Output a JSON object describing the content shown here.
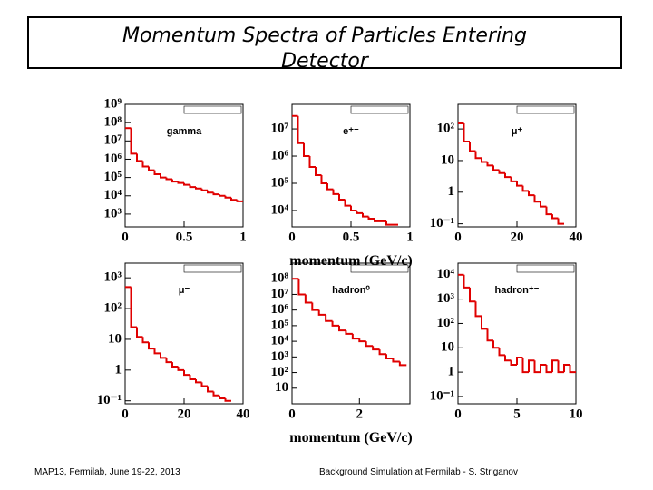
{
  "title": "Momentum Spectra of Particles Entering Detector",
  "footer_left": "MAP13, Fermilab, June 19-22, 2013",
  "footer_right": "Background Simulation at Fermilab - S. Striganov",
  "chart_data": [
    {
      "type": "histogram",
      "annotation": "gamma",
      "color": "#e00000",
      "log_y": true,
      "bins": [
        0,
        0.05,
        0.1,
        0.15,
        0.2,
        0.25,
        0.3,
        0.35,
        0.4,
        0.45,
        0.5,
        0.55,
        0.6,
        0.65,
        0.7,
        0.75,
        0.8,
        0.85,
        0.9,
        0.95,
        1
      ],
      "values": [
        50000000,
        2000000,
        800000,
        400000,
        250000,
        150000,
        100000,
        80000,
        60000,
        50000,
        40000,
        30000,
        25000,
        20000,
        15000,
        12000,
        10000,
        8000,
        6000,
        5000
      ],
      "xlim": [
        0,
        1
      ],
      "xticks": [
        0,
        0.5,
        1
      ],
      "ylim": [
        200,
        1000000000
      ],
      "yticks": [
        {
          "value": 1000,
          "label": "10³"
        },
        {
          "value": 10000,
          "label": "10⁴"
        },
        {
          "value": 100000,
          "label": "10⁵"
        },
        {
          "value": 1000000,
          "label": "10⁶"
        },
        {
          "value": 10000000,
          "label": "10⁷"
        },
        {
          "value": 100000000,
          "label": "10⁸"
        },
        {
          "value": 1000000000,
          "label": "10⁹"
        }
      ]
    },
    {
      "type": "histogram",
      "annotation": "e⁺⁻",
      "color": "#e00000",
      "log_y": true,
      "xlabel": "momentum (GeV/c)",
      "bins": [
        0,
        0.05,
        0.1,
        0.15,
        0.2,
        0.25,
        0.3,
        0.35,
        0.4,
        0.45,
        0.5,
        0.55,
        0.6,
        0.65,
        0.7,
        0.75,
        0.8,
        0.85,
        0.9
      ],
      "values": [
        30000000,
        3000000,
        1000000,
        400000,
        200000,
        100000,
        60000,
        40000,
        25000,
        15000,
        10000,
        8000,
        6000,
        5000,
        4000,
        4000,
        3000,
        3000
      ],
      "xlim": [
        0,
        1
      ],
      "xticks": [
        0,
        0.5,
        1
      ],
      "ylim": [
        2500,
        80000000
      ],
      "yticks": [
        {
          "value": 10000,
          "label": "10⁴"
        },
        {
          "value": 100000,
          "label": "10⁵"
        },
        {
          "value": 1000000,
          "label": "10⁶"
        },
        {
          "value": 10000000,
          "label": "10⁷"
        }
      ]
    },
    {
      "type": "histogram",
      "annotation": "μ⁺",
      "color": "#e00000",
      "log_y": true,
      "bins": [
        0,
        2,
        4,
        6,
        8,
        10,
        12,
        14,
        16,
        18,
        20,
        22,
        24,
        26,
        28,
        30,
        32,
        34,
        36
      ],
      "values": [
        150,
        40,
        20,
        12,
        9,
        7,
        5,
        4,
        3,
        2.2,
        1.6,
        1.1,
        0.8,
        0.5,
        0.35,
        0.2,
        0.15,
        0.1
      ],
      "xlim": [
        0,
        40
      ],
      "xticks": [
        0,
        20,
        40
      ],
      "ylim": [
        0.08,
        600
      ],
      "yticks": [
        {
          "value": 0.1,
          "label": "10⁻¹"
        },
        1,
        10,
        {
          "value": 100,
          "label": "10²"
        }
      ]
    },
    {
      "type": "histogram",
      "annotation": "μ⁻",
      "color": "#e00000",
      "log_y": true,
      "bins": [
        0,
        2,
        4,
        6,
        8,
        10,
        12,
        14,
        16,
        18,
        20,
        22,
        24,
        26,
        28,
        30,
        32,
        34,
        36
      ],
      "values": [
        500,
        25,
        12,
        8,
        5,
        3.5,
        2.5,
        1.8,
        1.3,
        1,
        0.7,
        0.5,
        0.4,
        0.3,
        0.2,
        0.15,
        0.12,
        0.1
      ],
      "xlim": [
        0,
        40
      ],
      "xticks": [
        0,
        20,
        40
      ],
      "ylim": [
        0.08,
        3000
      ],
      "yticks": [
        {
          "value": 0.1,
          "label": "10⁻¹"
        },
        1,
        10,
        {
          "value": 100,
          "label": "10²"
        },
        {
          "value": 1000,
          "label": "10³"
        }
      ]
    },
    {
      "type": "histogram",
      "annotation": "hadron⁰",
      "color": "#e00000",
      "log_y": true,
      "xlabel": "momentum (GeV/c)",
      "bins": [
        0,
        0.2,
        0.4,
        0.6,
        0.8,
        1,
        1.2,
        1.4,
        1.6,
        1.8,
        2,
        2.2,
        2.4,
        2.6,
        2.8,
        3,
        3.2,
        3.4
      ],
      "values": [
        100000000,
        10000000,
        3000000,
        1000000,
        500000,
        200000,
        100000,
        50000,
        30000,
        15000,
        10000,
        5000,
        3000,
        1500,
        800,
        500,
        300
      ],
      "xlim": [
        0,
        3.5
      ],
      "xticks": [
        0,
        2
      ],
      "ylim": [
        1,
        1000000000
      ],
      "yticks": [
        10,
        {
          "value": 100,
          "label": "10²"
        },
        {
          "value": 1000,
          "label": "10³"
        },
        {
          "value": 10000,
          "label": "10⁴"
        },
        {
          "value": 100000,
          "label": "10⁵"
        },
        {
          "value": 1000000,
          "label": "10⁶"
        },
        {
          "value": 10000000,
          "label": "10⁷"
        },
        {
          "value": 100000000,
          "label": "10⁸"
        }
      ]
    },
    {
      "type": "histogram",
      "annotation": "hadron⁺⁻",
      "color": "#e00000",
      "log_y": true,
      "bins": [
        0,
        0.5,
        1,
        1.5,
        2,
        2.5,
        3,
        3.5,
        4,
        4.5,
        5,
        5.5,
        6,
        6.5,
        7,
        7.5,
        8,
        8.5,
        9,
        9.5,
        10
      ],
      "values": [
        10000,
        3000,
        800,
        200,
        60,
        20,
        10,
        5,
        3,
        2,
        4,
        1,
        3,
        1,
        2,
        1,
        3,
        1,
        2,
        1
      ],
      "xlim": [
        0,
        10
      ],
      "xticks": [
        0,
        5,
        10
      ],
      "ylim": [
        0.05,
        30000
      ],
      "yticks": [
        {
          "value": 0.1,
          "label": "10⁻¹"
        },
        1,
        10,
        {
          "value": 100,
          "label": "10²"
        },
        {
          "value": 1000,
          "label": "10³"
        },
        {
          "value": 10000,
          "label": "10⁴"
        }
      ]
    }
  ]
}
